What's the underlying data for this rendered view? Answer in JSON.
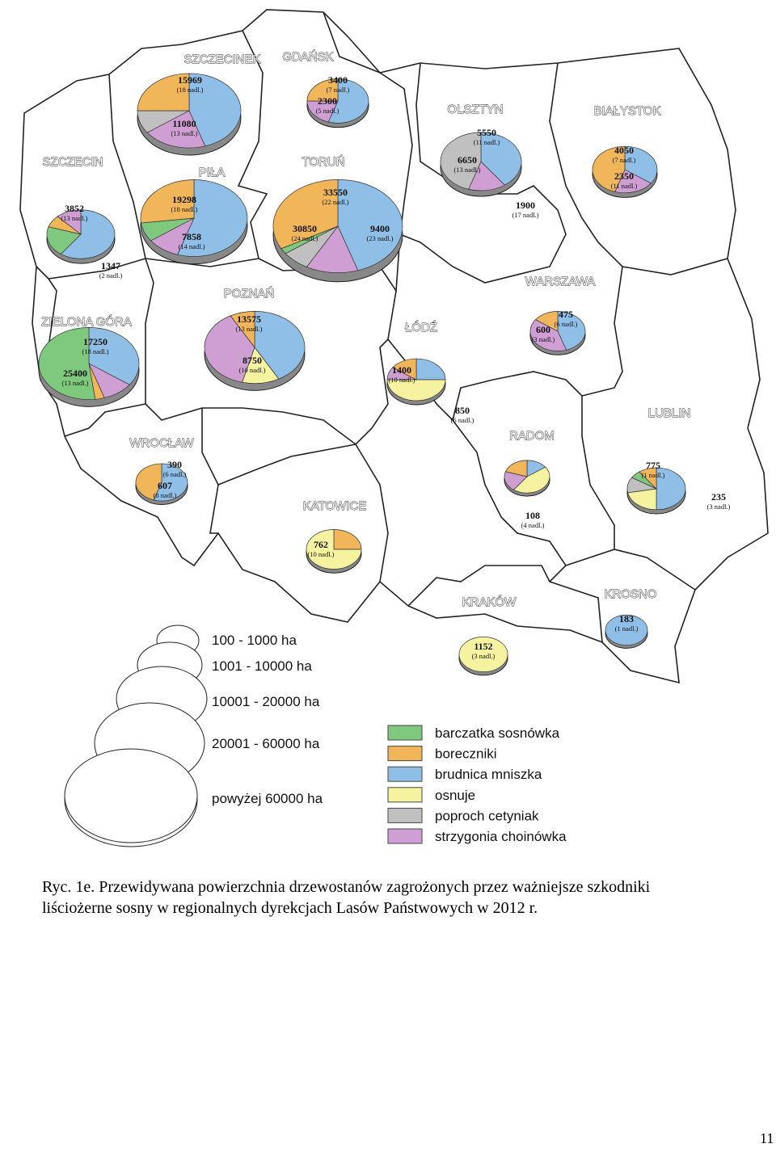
{
  "regions": [
    {
      "name": "SZCZECIN",
      "labels": [
        {
          "value": 3852,
          "note": "(13 nadl.)"
        },
        {
          "value": 1347,
          "note": "(2 nadl.)"
        }
      ]
    },
    {
      "name": "SZCZECINEK",
      "labels": [
        {
          "value": 15969,
          "note": "(18 nadl.)"
        },
        {
          "value": 11080,
          "note": "(13 nadl.)"
        }
      ]
    },
    {
      "name": "GDAŃSK",
      "labels": [
        {
          "value": 3400,
          "note": "(7 nadl.)"
        },
        {
          "value": 2300,
          "note": "(5 nadl.)"
        }
      ]
    },
    {
      "name": "PIŁA",
      "labels": [
        {
          "value": 19298,
          "note": "(18 nadl.)"
        },
        {
          "value": 7858,
          "note": "(14 nadl.)"
        }
      ]
    },
    {
      "name": "TORUŃ",
      "labels": [
        {
          "value": 33550,
          "note": "(22 nadl.)"
        },
        {
          "value": 30850,
          "note": "(24 nadl.)"
        },
        {
          "value": 9400,
          "note": "(23 nadl.)"
        }
      ]
    },
    {
      "name": "OLSZTYN",
      "labels": [
        {
          "value": 5550,
          "note": "(11 nadl.)"
        },
        {
          "value": 6650,
          "note": "(13 nadl.)"
        },
        {
          "value": 1900,
          "note": "(17 nadl.)"
        }
      ]
    },
    {
      "name": "BIAŁYSTOK",
      "labels": [
        {
          "value": 4050,
          "note": "(7 nadl.)"
        },
        {
          "value": 2350,
          "note": "(11 nadl.)"
        }
      ]
    },
    {
      "name": "ZIELONA GÓRA",
      "labels": [
        {
          "value": 17250,
          "note": "(18 nadl.)"
        },
        {
          "value": 25400,
          "note": "(13 nadl.)"
        }
      ]
    },
    {
      "name": "POZNAŃ",
      "labels": [
        {
          "value": 13575,
          "note": "(13 nadl.)"
        },
        {
          "value": 8750,
          "note": "(10 nadl.)"
        }
      ]
    },
    {
      "name": "ŁÓDŹ",
      "labels": [
        {
          "value": 1400,
          "note": "(10 nadl.)"
        },
        {
          "value": 850,
          "note": "(6 nadl.)"
        }
      ]
    },
    {
      "name": "WARSZAWA",
      "labels": [
        {
          "value": 475,
          "note": "(6 nadl.)"
        },
        {
          "value": 600,
          "note": "(3 nadl.)"
        }
      ]
    },
    {
      "name": "LUBLIN",
      "labels": [
        {
          "value": 775,
          "note": "(1 nadl.)"
        },
        {
          "value": 235,
          "note": "(3 nadl.)"
        }
      ]
    },
    {
      "name": "RADOM",
      "labels": [
        {
          "value": 108,
          "note": "(4 nadl.)"
        }
      ]
    },
    {
      "name": "WROCŁAW",
      "labels": [
        {
          "value": 390,
          "note": "(6 nadl.)"
        },
        {
          "value": 607,
          "note": "(8 nadl.)"
        }
      ]
    },
    {
      "name": "KATOWICE",
      "labels": [
        {
          "value": 762,
          "note": "(10 nadl.)"
        }
      ]
    },
    {
      "name": "KRAKÓW",
      "labels": [
        {
          "value": 1152,
          "note": "(3 nadl.)"
        }
      ]
    },
    {
      "name": "KROSNO",
      "labels": [
        {
          "value": 183,
          "note": "(1 nadl.)"
        }
      ]
    }
  ],
  "legend": {
    "sizes": [
      "100 - 1000 ha",
      "1001 - 10000 ha",
      "10001 - 20000 ha",
      "20001 - 60000 ha",
      "powyżej 60000 ha"
    ],
    "species": [
      {
        "name": "barczatka sosnówka",
        "color": "#7fc97f"
      },
      {
        "name": "boreczniki",
        "color": "#f2b65a"
      },
      {
        "name": "brudnica mniszka",
        "color": "#8fbfe6"
      },
      {
        "name": "osnuje",
        "color": "#f5f2a0"
      },
      {
        "name": "poproch cetyniak",
        "color": "#c0c0c0"
      },
      {
        "name": "strzygonia choinówka",
        "color": "#cf9fd3"
      }
    ]
  },
  "caption": [
    "Ryc. 1e. Przewidywana powierzchnia drzewostanów zagrożonych przez ważniejsze szkodniki",
    "liściożerne sosny w regionalnych dyrekcjach Lasów Państwowych w 2012 r."
  ],
  "page_number": "11"
}
